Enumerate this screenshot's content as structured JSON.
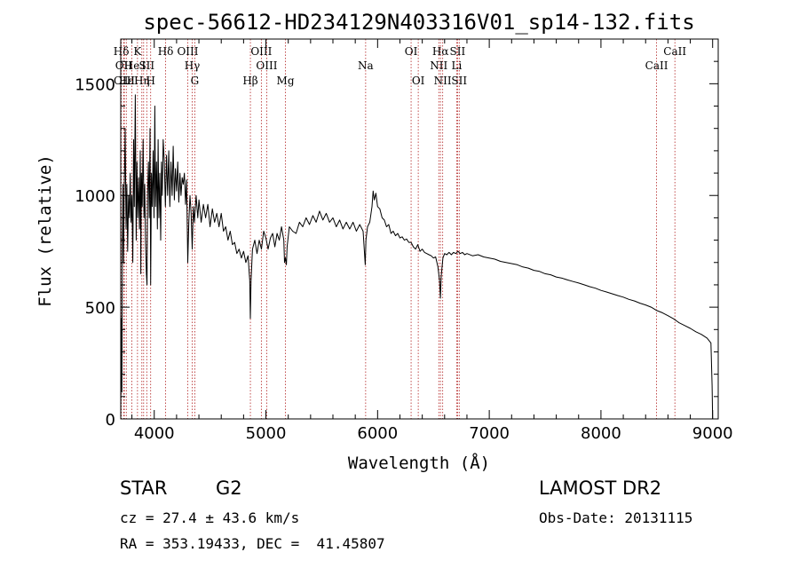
{
  "chart_data": {
    "type": "line",
    "title": "spec-56612-HD234129N403316V01_sp14-132.fits",
    "xlabel": "Wavelength (Å)",
    "ylabel": "Flux (relative)",
    "xlim": [
      3700,
      9050
    ],
    "ylim": [
      0,
      1700
    ],
    "xticks": [
      4000,
      5000,
      6000,
      7000,
      8000,
      9000
    ],
    "yticks": [
      0,
      500,
      1000,
      1500
    ],
    "x_minor_step": 200,
    "y_minor_step": 100,
    "series": [
      {
        "name": "flux",
        "color": "#000000",
        "points": [
          [
            3700,
            0
          ],
          [
            3705,
            450
          ],
          [
            3710,
            120
          ],
          [
            3715,
            800
          ],
          [
            3720,
            1050
          ],
          [
            3725,
            700
          ],
          [
            3730,
            980
          ],
          [
            3740,
            1300
          ],
          [
            3748,
            850
          ],
          [
            3755,
            1050
          ],
          [
            3762,
            750
          ],
          [
            3770,
            1000
          ],
          [
            3778,
            900
          ],
          [
            3785,
            1100
          ],
          [
            3792,
            880
          ],
          [
            3800,
            1000
          ],
          [
            3808,
            700
          ],
          [
            3815,
            1250
          ],
          [
            3822,
            950
          ],
          [
            3830,
            1450
          ],
          [
            3838,
            800
          ],
          [
            3845,
            1150
          ],
          [
            3852,
            900
          ],
          [
            3860,
            1080
          ],
          [
            3868,
            850
          ],
          [
            3875,
            1200
          ],
          [
            3880,
            650
          ],
          [
            3885,
            1100
          ],
          [
            3892,
            950
          ],
          [
            3900,
            1250
          ],
          [
            3908,
            900
          ],
          [
            3915,
            1050
          ],
          [
            3922,
            800
          ],
          [
            3930,
            650
          ],
          [
            3935,
            600
          ],
          [
            3940,
            1000
          ],
          [
            3948,
            1150
          ],
          [
            3955,
            900
          ],
          [
            3962,
            1300
          ],
          [
            3968,
            600
          ],
          [
            3975,
            1100
          ],
          [
            3982,
            950
          ],
          [
            3990,
            1200
          ],
          [
            3998,
            900
          ],
          [
            4005,
            1400
          ],
          [
            4012,
            950
          ],
          [
            4020,
            1150
          ],
          [
            4028,
            850
          ],
          [
            4035,
            1250
          ],
          [
            4042,
            900
          ],
          [
            4050,
            1100
          ],
          [
            4058,
            800
          ],
          [
            4065,
            1150
          ],
          [
            4072,
            1000
          ],
          [
            4080,
            1250
          ],
          [
            4090,
            1150
          ],
          [
            4100,
            950
          ],
          [
            4110,
            1180
          ],
          [
            4120,
            1000
          ],
          [
            4130,
            1200
          ],
          [
            4140,
            950
          ],
          [
            4150,
            1150
          ],
          [
            4160,
            1000
          ],
          [
            4170,
            1220
          ],
          [
            4180,
            980
          ],
          [
            4190,
            1120
          ],
          [
            4200,
            1020
          ],
          [
            4210,
            1150
          ],
          [
            4220,
            970
          ],
          [
            4230,
            1100
          ],
          [
            4240,
            1000
          ],
          [
            4250,
            1080
          ],
          [
            4260,
            1050
          ],
          [
            4270,
            1100
          ],
          [
            4280,
            960
          ],
          [
            4290,
            1070
          ],
          [
            4300,
            700
          ],
          [
            4310,
            880
          ],
          [
            4320,
            1000
          ],
          [
            4330,
            920
          ],
          [
            4340,
            760
          ],
          [
            4350,
            950
          ],
          [
            4360,
            880
          ],
          [
            4375,
            1000
          ],
          [
            4390,
            900
          ],
          [
            4400,
            980
          ],
          [
            4420,
            880
          ],
          [
            4440,
            960
          ],
          [
            4460,
            900
          ],
          [
            4480,
            960
          ],
          [
            4500,
            860
          ],
          [
            4520,
            940
          ],
          [
            4540,
            880
          ],
          [
            4560,
            920
          ],
          [
            4580,
            860
          ],
          [
            4600,
            920
          ],
          [
            4620,
            840
          ],
          [
            4640,
            860
          ],
          [
            4660,
            800
          ],
          [
            4680,
            840
          ],
          [
            4700,
            780
          ],
          [
            4720,
            790
          ],
          [
            4740,
            740
          ],
          [
            4760,
            760
          ],
          [
            4780,
            720
          ],
          [
            4800,
            750
          ],
          [
            4820,
            700
          ],
          [
            4840,
            730
          ],
          [
            4855,
            620
          ],
          [
            4861,
            450
          ],
          [
            4867,
            620
          ],
          [
            4880,
            760
          ],
          [
            4900,
            800
          ],
          [
            4920,
            740
          ],
          [
            4940,
            800
          ],
          [
            4960,
            760
          ],
          [
            4980,
            840
          ],
          [
            5000,
            810
          ],
          [
            5020,
            760
          ],
          [
            5040,
            810
          ],
          [
            5060,
            830
          ],
          [
            5080,
            770
          ],
          [
            5100,
            830
          ],
          [
            5120,
            800
          ],
          [
            5140,
            860
          ],
          [
            5160,
            800
          ],
          [
            5167,
            700
          ],
          [
            5175,
            720
          ],
          [
            5183,
            690
          ],
          [
            5190,
            770
          ],
          [
            5210,
            860
          ],
          [
            5240,
            840
          ],
          [
            5270,
            830
          ],
          [
            5300,
            880
          ],
          [
            5330,
            860
          ],
          [
            5360,
            900
          ],
          [
            5390,
            870
          ],
          [
            5420,
            910
          ],
          [
            5450,
            880
          ],
          [
            5480,
            930
          ],
          [
            5510,
            890
          ],
          [
            5540,
            920
          ],
          [
            5570,
            880
          ],
          [
            5600,
            900
          ],
          [
            5630,
            860
          ],
          [
            5660,
            890
          ],
          [
            5690,
            850
          ],
          [
            5720,
            880
          ],
          [
            5750,
            850
          ],
          [
            5780,
            880
          ],
          [
            5810,
            840
          ],
          [
            5840,
            870
          ],
          [
            5870,
            840
          ],
          [
            5889,
            690
          ],
          [
            5896,
            800
          ],
          [
            5910,
            860
          ],
          [
            5930,
            880
          ],
          [
            5950,
            950
          ],
          [
            5960,
            1020
          ],
          [
            5970,
            980
          ],
          [
            5985,
            1010
          ],
          [
            6000,
            950
          ],
          [
            6020,
            940
          ],
          [
            6040,
            900
          ],
          [
            6060,
            890
          ],
          [
            6080,
            860
          ],
          [
            6100,
            870
          ],
          [
            6120,
            830
          ],
          [
            6140,
            840
          ],
          [
            6160,
            820
          ],
          [
            6180,
            830
          ],
          [
            6200,
            810
          ],
          [
            6220,
            815
          ],
          [
            6240,
            800
          ],
          [
            6260,
            805
          ],
          [
            6280,
            790
          ],
          [
            6300,
            790
          ],
          [
            6320,
            770
          ],
          [
            6340,
            760
          ],
          [
            6360,
            780
          ],
          [
            6380,
            750
          ],
          [
            6400,
            760
          ],
          [
            6420,
            745
          ],
          [
            6440,
            740
          ],
          [
            6460,
            735
          ],
          [
            6480,
            730
          ],
          [
            6500,
            720
          ],
          [
            6520,
            725
          ],
          [
            6540,
            680
          ],
          [
            6555,
            620
          ],
          [
            6563,
            540
          ],
          [
            6570,
            640
          ],
          [
            6585,
            720
          ],
          [
            6600,
            740
          ],
          [
            6620,
            735
          ],
          [
            6640,
            745
          ],
          [
            6660,
            735
          ],
          [
            6680,
            745
          ],
          [
            6700,
            740
          ],
          [
            6720,
            750
          ],
          [
            6740,
            740
          ],
          [
            6760,
            745
          ],
          [
            6780,
            735
          ],
          [
            6800,
            740
          ],
          [
            6850,
            730
          ],
          [
            6900,
            735
          ],
          [
            6950,
            725
          ],
          [
            7000,
            720
          ],
          [
            7050,
            715
          ],
          [
            7100,
            705
          ],
          [
            7150,
            700
          ],
          [
            7200,
            695
          ],
          [
            7250,
            690
          ],
          [
            7300,
            680
          ],
          [
            7350,
            675
          ],
          [
            7400,
            665
          ],
          [
            7450,
            660
          ],
          [
            7500,
            650
          ],
          [
            7550,
            645
          ],
          [
            7600,
            635
          ],
          [
            7650,
            630
          ],
          [
            7700,
            622
          ],
          [
            7750,
            615
          ],
          [
            7800,
            608
          ],
          [
            7850,
            600
          ],
          [
            7900,
            592
          ],
          [
            7950,
            585
          ],
          [
            8000,
            575
          ],
          [
            8050,
            568
          ],
          [
            8100,
            560
          ],
          [
            8150,
            552
          ],
          [
            8200,
            545
          ],
          [
            8250,
            535
          ],
          [
            8300,
            528
          ],
          [
            8350,
            518
          ],
          [
            8400,
            510
          ],
          [
            8450,
            500
          ],
          [
            8500,
            485
          ],
          [
            8550,
            475
          ],
          [
            8600,
            462
          ],
          [
            8650,
            448
          ],
          [
            8700,
            430
          ],
          [
            8750,
            418
          ],
          [
            8800,
            405
          ],
          [
            8850,
            390
          ],
          [
            8900,
            378
          ],
          [
            8950,
            362
          ],
          [
            8985,
            340
          ],
          [
            8995,
            150
          ],
          [
            9000,
            0
          ]
        ]
      }
    ],
    "lines": [
      {
        "label": "Hδ",
        "x": 3705,
        "row": 1
      },
      {
        "label": "OII",
        "x": 3727,
        "row": 2
      },
      {
        "label": "OIII",
        "x": 3732,
        "row": 3
      },
      {
        "label": "Hε",
        "x": 3750,
        "row": 3
      },
      {
        "label": "He",
        "x": 3800,
        "row": 2
      },
      {
        "label": "K",
        "x": 3850,
        "row": 1
      },
      {
        "label": "Hη",
        "x": 3889,
        "row": 3
      },
      {
        "label": "I",
        "x": 3905,
        "row": 2
      },
      {
        "label": "SII",
        "x": 3933,
        "row": 2
      },
      {
        "label": "H",
        "x": 3968,
        "row": 3
      },
      {
        "label": "Hδ",
        "x": 4102,
        "row": 1
      },
      {
        "label": "OIII",
        "x": 4300,
        "row": 1
      },
      {
        "label": "Hγ",
        "x": 4340,
        "row": 2
      },
      {
        "label": "G",
        "x": 4363,
        "row": 3
      },
      {
        "label": "Hβ",
        "x": 4861,
        "row": 3
      },
      {
        "label": "OIII",
        "x": 4959,
        "row": 1
      },
      {
        "label": "OIII",
        "x": 5007,
        "row": 2
      },
      {
        "label": "Mg",
        "x": 5175,
        "row": 3
      },
      {
        "label": "Na",
        "x": 5893,
        "row": 2
      },
      {
        "label": "OI",
        "x": 6300,
        "row": 1
      },
      {
        "label": "OI",
        "x": 6364,
        "row": 3
      },
      {
        "label": "NII",
        "x": 6548,
        "row": 2
      },
      {
        "label": "Hα",
        "x": 6563,
        "row": 1
      },
      {
        "label": "NII",
        "x": 6583,
        "row": 3
      },
      {
        "label": "SII",
        "x": 6716,
        "row": 1
      },
      {
        "label": "Li",
        "x": 6708,
        "row": 2
      },
      {
        "label": "SII",
        "x": 6731,
        "row": 3
      },
      {
        "label": "CaII",
        "x": 8498,
        "row": 2
      },
      {
        "label": "CaII",
        "x": 8662,
        "row": 1
      }
    ],
    "line_color": "#b22222"
  },
  "info": {
    "object_class": "STAR",
    "subclass": "G2",
    "survey": "LAMOST DR2",
    "cz": "cz = 27.4 ± 43.6 km/s",
    "obs_date": "Obs-Date: 20131115",
    "coords": "RA = 353.19433, DEC =  41.45807"
  }
}
